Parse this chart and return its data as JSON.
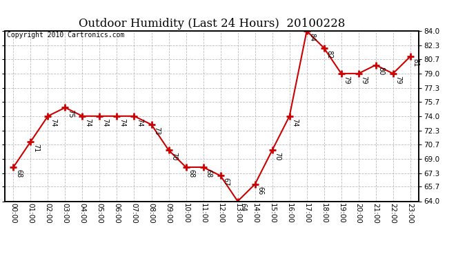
{
  "title": "Outdoor Humidity (Last 24 Hours)  20100228",
  "copyright": "Copyright 2010 Cartronics.com",
  "hours": [
    "00:00",
    "01:00",
    "02:00",
    "03:00",
    "04:00",
    "05:00",
    "06:00",
    "07:00",
    "08:00",
    "09:00",
    "10:00",
    "11:00",
    "12:00",
    "13:00",
    "14:00",
    "15:00",
    "16:00",
    "17:00",
    "18:00",
    "19:00",
    "20:00",
    "21:00",
    "22:00",
    "23:00"
  ],
  "values": [
    68,
    71,
    74,
    75,
    74,
    74,
    74,
    74,
    73,
    70,
    68,
    68,
    67,
    64,
    66,
    70,
    74,
    84,
    82,
    79,
    79,
    80,
    79,
    81
  ],
  "ylim": [
    64.0,
    84.0
  ],
  "yticks": [
    64.0,
    65.7,
    67.3,
    69.0,
    70.7,
    72.3,
    74.0,
    75.7,
    77.3,
    79.0,
    80.7,
    82.3,
    84.0
  ],
  "line_color": "#cc0000",
  "marker_color": "#cc0000",
  "bg_color": "#ffffff",
  "grid_color": "#bbbbbb",
  "title_fontsize": 12,
  "label_fontsize": 7,
  "tick_fontsize": 7.5,
  "copyright_fontsize": 7
}
